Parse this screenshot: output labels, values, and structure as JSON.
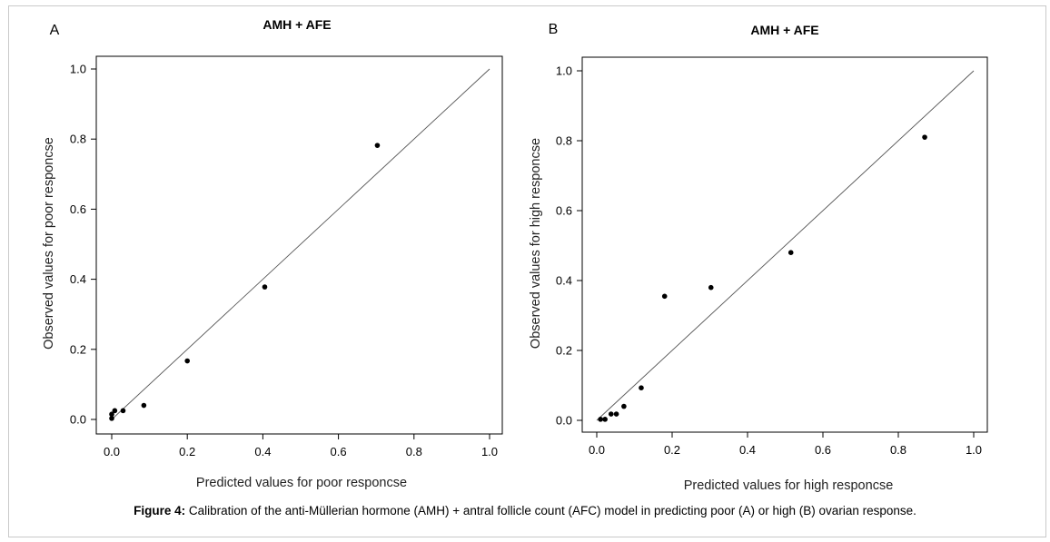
{
  "caption": {
    "label": "Figure 4:",
    "text": "Calibration of the anti-Müllerian hormone (AMH) + antral follicle count (AFC) model in predicting poor (A) or high (B) ovarian response."
  },
  "chart_data": [
    {
      "type": "scatter",
      "panel_letter": "A",
      "title": "AMH + AFE",
      "xlabel": "Predicted values for poor responcse",
      "ylabel": "Observed values for poor responcse",
      "xlim": [
        0,
        1.0
      ],
      "ylim": [
        0,
        1.0
      ],
      "xticks": [
        "0.0",
        "0.2",
        "0.4",
        "0.6",
        "0.8",
        "1.0"
      ],
      "yticks": [
        "0.0",
        "0.2",
        "0.4",
        "0.6",
        "0.8",
        "1.0"
      ],
      "reference_line": [
        [
          0,
          0
        ],
        [
          1,
          1
        ]
      ],
      "grid": false,
      "points": [
        {
          "x": 0.0,
          "y": 0.003
        },
        {
          "x": 0.0,
          "y": 0.015
        },
        {
          "x": 0.008,
          "y": 0.025
        },
        {
          "x": 0.03,
          "y": 0.025
        },
        {
          "x": 0.085,
          "y": 0.04
        },
        {
          "x": 0.2,
          "y": 0.167
        },
        {
          "x": 0.405,
          "y": 0.378
        },
        {
          "x": 0.703,
          "y": 0.782
        }
      ]
    },
    {
      "type": "scatter",
      "panel_letter": "B",
      "title": "AMH + AFE",
      "xlabel": "Predicted values for high responcse",
      "ylabel": "Observed values for high responcse",
      "xlim": [
        0,
        1.0
      ],
      "ylim": [
        0,
        1.0
      ],
      "xticks": [
        "0.0",
        "0.2",
        "0.4",
        "0.6",
        "0.8",
        "1.0"
      ],
      "yticks": [
        "0.0",
        "0.2",
        "0.4",
        "0.6",
        "0.8",
        "1.0"
      ],
      "reference_line": [
        [
          0,
          0
        ],
        [
          1,
          1
        ]
      ],
      "grid": false,
      "points": [
        {
          "x": 0.01,
          "y": 0.003
        },
        {
          "x": 0.022,
          "y": 0.003
        },
        {
          "x": 0.038,
          "y": 0.018
        },
        {
          "x": 0.052,
          "y": 0.018
        },
        {
          "x": 0.072,
          "y": 0.04
        },
        {
          "x": 0.118,
          "y": 0.093
        },
        {
          "x": 0.18,
          "y": 0.355
        },
        {
          "x": 0.303,
          "y": 0.38
        },
        {
          "x": 0.515,
          "y": 0.48
        },
        {
          "x": 0.87,
          "y": 0.81
        }
      ]
    }
  ]
}
